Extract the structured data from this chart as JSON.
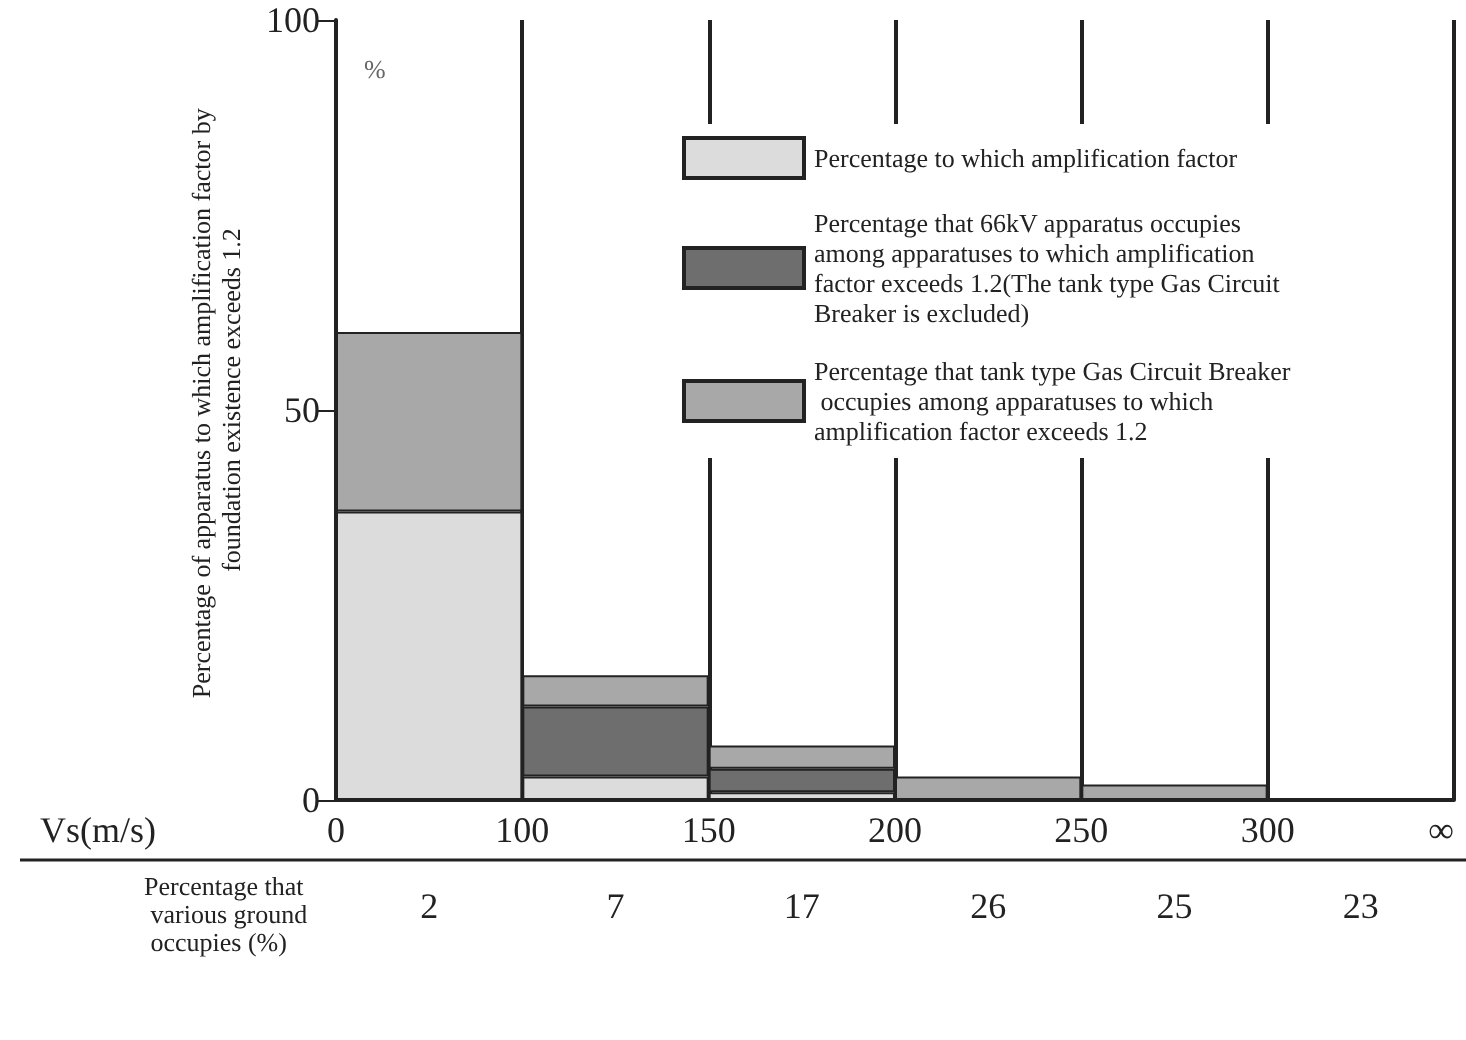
{
  "chart_data": {
    "type": "bar",
    "stacked": true,
    "xlabel": "Percentage that various ground occupies (%)",
    "ylabel": "Percentage of apparatus to which amplification factor by foundation existence exceeds 1.2",
    "categories": [
      "2",
      "7",
      "17",
      "26",
      "25",
      "23"
    ],
    "series": [
      {
        "name": "Percentage to which amplification factor",
        "color": "#dcdcdc",
        "values": [
          37,
          3,
          1,
          0,
          0,
          0
        ]
      },
      {
        "name": "Percentage that 66kV apparatus occupies among apparatuses to which amplification factor exceeds 1.2(The tank type Gas Circuit Breaker is excluded)",
        "color": "#6e6e6e",
        "values": [
          0,
          9,
          3,
          0,
          0,
          0
        ]
      },
      {
        "name": "Percentage that tank type Gas Circuit Breaker occupies among apparatuses to which amplification factor exceeds 1.2",
        "color": "#a8a8a8",
        "values": [
          23,
          4,
          3,
          3,
          2,
          0
        ]
      }
    ],
    "ylim": [
      0,
      100
    ],
    "yticks": [
      0,
      50,
      100
    ],
    "grid": "x",
    "legend": "top right",
    "annotations": [
      "%",
      "Vs(m/s)",
      "0",
      "100",
      "150",
      "200",
      "250",
      "300",
      "∞"
    ]
  }
}
